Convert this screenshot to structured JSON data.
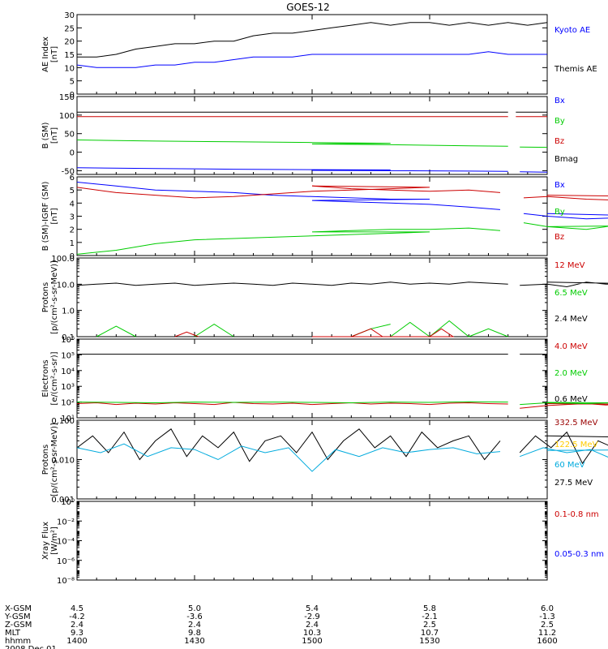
{
  "title": "GOES-12",
  "colors": {
    "black": "#000000",
    "blue": "#0000ff",
    "red": "#cc0000",
    "green": "#00cc00",
    "yellow": "#ffcc00",
    "cyan": "#00aadd",
    "dark_red": "#990000"
  },
  "panels": [
    {
      "id": "ae",
      "ylabel": [
        "AE Index",
        "[nT]"
      ],
      "scale": "linear",
      "ymin": 0,
      "ymax": 30,
      "ticks": [
        0,
        5,
        10,
        15,
        20,
        25,
        30
      ],
      "tick_labels": [
        "0",
        "5",
        "10",
        "15",
        "20",
        "25",
        "30"
      ],
      "legend": [
        {
          "text": "Kyoto AE",
          "color": "#0000ff"
        },
        {
          "text": "Themis AE",
          "color": "#000000"
        }
      ],
      "series": [
        {
          "color": "#000000",
          "x": [
            1400,
            1405,
            1410,
            1415,
            1420,
            1425,
            1430,
            1435,
            1440,
            1445,
            1450,
            1455,
            1500,
            1505,
            1510,
            1515,
            1520,
            1525,
            1530,
            1535,
            1540,
            1545,
            1550,
            1555,
            1600
          ],
          "y": [
            14,
            14,
            15,
            17,
            18,
            19,
            19,
            20,
            20,
            22,
            23,
            23,
            24,
            25,
            26,
            27,
            26,
            27,
            27,
            26,
            27,
            26,
            27,
            26,
            27
          ]
        },
        {
          "color": "#0000ff",
          "x": [
            1400,
            1405,
            1410,
            1415,
            1420,
            1425,
            1430,
            1435,
            1440,
            1445,
            1450,
            1455,
            1500,
            1505,
            1510,
            1515,
            1520,
            1525,
            1530,
            1535,
            1540,
            1545,
            1550,
            1555,
            1600
          ],
          "y": [
            11,
            10,
            10,
            10,
            11,
            11,
            12,
            12,
            13,
            14,
            14,
            14,
            15,
            15,
            15,
            15,
            15,
            15,
            15,
            15,
            15,
            16,
            15,
            15,
            15
          ]
        }
      ]
    },
    {
      "id": "bfield",
      "ylabel": [
        "B (SM)",
        "[nT]"
      ],
      "scale": "linear",
      "ymin": -60,
      "ymax": 150,
      "ticks": [
        -50,
        0,
        50,
        100,
        150
      ],
      "tick_labels": [
        "-50",
        "0",
        "50",
        "100",
        "150"
      ],
      "legend": [
        {
          "text": "Bx",
          "color": "#0000ff"
        },
        {
          "text": "By",
          "color": "#00cc00"
        },
        {
          "text": "Bz",
          "color": "#cc0000"
        },
        {
          "text": "Bmag",
          "color": "#000000"
        }
      ],
      "series": [
        {
          "color": "#000000",
          "x": [
            1400,
            1550,
            null,
            1552,
            1560,
            1600
          ],
          "y": [
            108,
            108,
            null,
            108,
            108,
            108
          ]
        },
        {
          "color": "#cc0000",
          "x": [
            1400,
            1550,
            null,
            1552,
            1560,
            1600
          ],
          "y": [
            96,
            96,
            null,
            96,
            96,
            96
          ]
        },
        {
          "color": "#00cc00",
          "x": [
            1400,
            1420,
            1440,
            1460,
            1480,
            1500,
            1520,
            1540,
            1550,
            null,
            1553,
            1600
          ],
          "y": [
            33,
            30,
            28,
            26,
            24,
            22,
            20,
            17,
            16,
            null,
            14,
            13
          ]
        },
        {
          "color": "#0000ff",
          "x": [
            1400,
            1420,
            1440,
            1460,
            1480,
            1500,
            1520,
            1540,
            1550,
            null,
            1553,
            1600
          ],
          "y": [
            -42,
            -44,
            -46,
            -47,
            -48,
            -49,
            -50,
            -51,
            -52,
            null,
            -53,
            -54
          ]
        }
      ]
    },
    {
      "id": "bigrf",
      "ylabel": [
        "B (SM)-IGRF (SM)",
        "[nT]"
      ],
      "scale": "linear",
      "ymin": 0,
      "ymax": 6,
      "ticks": [
        0,
        1,
        2,
        3,
        4,
        5,
        6
      ],
      "tick_labels": [
        "0",
        "1",
        "2",
        "3",
        "4",
        "5",
        "6"
      ],
      "legend": [
        {
          "text": "Bx",
          "color": "#0000ff"
        },
        {
          "text": "By",
          "color": "#00cc00"
        },
        {
          "text": "Bz",
          "color": "#cc0000"
        }
      ],
      "series": [
        {
          "color": "#0000ff",
          "x": [
            1400,
            1410,
            1420,
            1430,
            1440,
            1450,
            1460,
            1470,
            1480,
            1490,
            1500,
            1510,
            1520,
            1530,
            1540,
            1548,
            null,
            1554,
            1560,
            1570,
            1580,
            1590,
            1600
          ],
          "y": [
            5.6,
            5.3,
            5.0,
            4.9,
            4.8,
            4.6,
            4.5,
            4.4,
            4.3,
            4.3,
            4.2,
            4.1,
            4.0,
            3.9,
            3.7,
            3.5,
            null,
            3.2,
            3.0,
            2.8,
            2.9,
            3.0,
            3.2
          ]
        },
        {
          "color": "#cc0000",
          "x": [
            1400,
            1410,
            1420,
            1430,
            1440,
            1450,
            1460,
            1470,
            1480,
            1490,
            1500,
            1510,
            1520,
            1530,
            1540,
            1548,
            null,
            1554,
            1560,
            1570,
            1580,
            1590,
            1600
          ],
          "y": [
            5.2,
            4.8,
            4.6,
            4.4,
            4.5,
            4.7,
            4.9,
            5.0,
            5.1,
            5.2,
            5.3,
            5.1,
            5.0,
            4.9,
            5.0,
            4.8,
            null,
            4.4,
            4.5,
            4.3,
            4.2,
            4.5,
            4.6
          ]
        },
        {
          "color": "#00cc00",
          "x": [
            1400,
            1410,
            1420,
            1430,
            1440,
            1450,
            1460,
            1470,
            1480,
            1490,
            1500,
            1510,
            1520,
            1530,
            1540,
            1548,
            null,
            1554,
            1560,
            1570,
            1580,
            1590,
            1600
          ],
          "y": [
            0.1,
            0.4,
            0.9,
            1.2,
            1.3,
            1.4,
            1.5,
            1.6,
            1.7,
            1.8,
            1.8,
            1.9,
            2.0,
            2.0,
            2.1,
            1.9,
            null,
            2.5,
            2.2,
            2.0,
            2.4,
            2.3,
            2.2
          ]
        }
      ]
    },
    {
      "id": "protons1",
      "ylabel": [
        "Protons",
        "[p/(cm²-s-sr-MeV)]"
      ],
      "scale": "log",
      "ymin": 0.1,
      "ymax": 100,
      "ticks": [
        0.1,
        1,
        10,
        100
      ],
      "tick_labels": [
        "0.1",
        "1.0",
        "10.0",
        "100.0"
      ],
      "legend": [
        {
          "text": "12 MeV",
          "color": "#cc0000"
        },
        {
          "text": "6.5 MeV",
          "color": "#00cc00"
        },
        {
          "text": "2.4 MeV",
          "color": "#000000"
        }
      ],
      "series": [
        {
          "color": "#000000",
          "x": [
            1400,
            1405,
            1410,
            1415,
            1420,
            1425,
            1430,
            1435,
            1440,
            1445,
            1450,
            1455,
            1500,
            1505,
            1510,
            1515,
            1520,
            1525,
            1530,
            1535,
            1540,
            1545,
            1550,
            null,
            1553,
            1560,
            1565,
            1570,
            1575,
            1580,
            1585,
            1590,
            1600
          ],
          "y": [
            9,
            10,
            11,
            9,
            10,
            11,
            9,
            10,
            11,
            10,
            9,
            11,
            10,
            9,
            11,
            10,
            12,
            10,
            11,
            10,
            12,
            11,
            10,
            null,
            9,
            10,
            8,
            12,
            10,
            11,
            9,
            10,
            12
          ]
        },
        {
          "color": "#00cc00",
          "x": [
            1405,
            1410,
            1415,
            null,
            1430,
            1435,
            1440,
            null,
            1460,
            1465,
            null,
            1480,
            1485,
            1490,
            null,
            1510,
            1515,
            1520,
            null,
            1530,
            1535,
            1540,
            1545,
            1550
          ],
          "y": [
            0.1,
            0.25,
            0.1,
            null,
            0.1,
            0.3,
            0.1,
            null,
            0.1,
            0.1,
            null,
            0.1,
            0.35,
            0.1,
            null,
            0.1,
            0.2,
            0.3,
            null,
            0.1,
            0.4,
            0.1,
            0.2,
            0.1
          ]
        },
        {
          "color": "#cc0000",
          "x": [
            1425,
            1428,
            1431,
            null,
            1490,
            1493,
            1496,
            1500,
            null,
            1510,
            1515,
            1518
          ],
          "y": [
            0.1,
            0.15,
            0.1,
            null,
            0.1,
            0.2,
            0.1,
            0.1,
            null,
            0.1,
            0.2,
            0.1
          ]
        }
      ]
    },
    {
      "id": "electrons",
      "ylabel": [
        "Electrons",
        "[e/(cm²-s-sr)]"
      ],
      "scale": "log",
      "ymin": 10,
      "ymax": 1000000,
      "ticks": [
        10,
        100,
        1000,
        10000,
        100000,
        1000000
      ],
      "tick_labels": [
        "10¹",
        "10²",
        "10³",
        "10⁴",
        "10⁵",
        "10⁶"
      ],
      "legend": [
        {
          "text": "4.0 MeV",
          "color": "#cc0000"
        },
        {
          "text": "2.0 MeV",
          "color": "#00cc00"
        },
        {
          "text": "0.6 MeV",
          "color": "#000000"
        }
      ],
      "series": [
        {
          "color": "#000000",
          "x": [
            1400,
            1550,
            null,
            1553,
            1600
          ],
          "y": [
            110000,
            110000,
            null,
            110000,
            110000
          ]
        },
        {
          "color": "#cc0000",
          "x": [
            1400,
            1405,
            1410,
            1415,
            1420,
            1425,
            1430,
            1435,
            1440,
            1445,
            1450,
            1455,
            1500,
            1505,
            1510,
            1515,
            1520,
            1525,
            1530,
            1535,
            1540,
            1545,
            1550,
            null,
            1553,
            1560,
            1565,
            1570,
            1575,
            1580,
            1585,
            1590,
            1600
          ],
          "y": [
            80,
            90,
            70,
            85,
            75,
            90,
            80,
            70,
            95,
            80,
            75,
            85,
            70,
            80,
            90,
            75,
            85,
            80,
            70,
            85,
            90,
            80,
            75,
            null,
            40,
            60,
            70,
            80,
            65,
            75,
            85,
            70,
            80
          ]
        },
        {
          "color": "#00cc00",
          "x": [
            1400,
            1410,
            1420,
            1430,
            1440,
            1450,
            1500,
            1510,
            1520,
            1530,
            1540,
            1550,
            null,
            1553,
            1560,
            1570,
            1580,
            1590,
            1600
          ],
          "y": [
            100,
            95,
            90,
            100,
            95,
            100,
            95,
            90,
            100,
            95,
            105,
            100,
            null,
            70,
            90,
            80,
            95,
            85,
            95
          ]
        }
      ]
    },
    {
      "id": "protons2",
      "ylabel": [
        "Protons",
        "[p/(cm²-s-sr-MeV)]"
      ],
      "scale": "log",
      "ymin": 0.001,
      "ymax": 0.1,
      "ticks": [
        0.001,
        0.01,
        0.1
      ],
      "tick_labels": [
        "0.001",
        "0.010",
        "0.100"
      ],
      "legend": [
        {
          "text": "332.5 MeV",
          "color": "#990000"
        },
        {
          "text": "122.5 MeV",
          "color": "#ffcc00"
        },
        {
          "text": "60 MeV",
          "color": "#00aadd"
        },
        {
          "text": "27.5 MeV",
          "color": "#000000"
        }
      ],
      "series": [
        {
          "color": "#000000",
          "x": [
            1400,
            1404,
            1408,
            1412,
            1416,
            1420,
            1424,
            1428,
            1432,
            1436,
            1440,
            1444,
            1448,
            1452,
            1456,
            1500,
            1504,
            1508,
            1512,
            1516,
            1520,
            1524,
            1528,
            1532,
            1536,
            1540,
            1544,
            1548,
            null,
            1553,
            1557,
            1561,
            1565,
            1569,
            1573,
            1577,
            1581,
            1585,
            1589,
            1593,
            1597,
            1600
          ],
          "y": [
            0.02,
            0.04,
            0.015,
            0.05,
            0.01,
            0.03,
            0.06,
            0.012,
            0.04,
            0.02,
            0.05,
            0.009,
            0.03,
            0.04,
            0.015,
            0.05,
            0.01,
            0.03,
            0.06,
            0.02,
            0.04,
            0.012,
            0.05,
            0.02,
            0.03,
            0.04,
            0.01,
            0.03,
            null,
            0.015,
            0.04,
            0.02,
            0.05,
            0.008,
            0.03,
            0.02,
            0.04,
            0.01,
            0.03,
            0.02,
            0.035,
            0.04
          ]
        },
        {
          "color": "#00aadd",
          "x": [
            1400,
            1406,
            1412,
            1418,
            1424,
            1430,
            1436,
            1442,
            1448,
            1454,
            1500,
            1506,
            1512,
            1518,
            1524,
            1530,
            1536,
            1542,
            1548,
            null,
            1553,
            1559,
            1565,
            1571,
            1577,
            1583,
            1589,
            1595,
            1600
          ],
          "y": [
            0.02,
            0.015,
            0.025,
            0.012,
            0.02,
            0.018,
            0.01,
            0.022,
            0.015,
            0.02,
            0.005,
            0.018,
            0.012,
            0.02,
            0.015,
            0.018,
            0.02,
            0.014,
            0.016,
            null,
            0.012,
            0.02,
            0.015,
            0.018,
            0.01,
            0.02,
            0.015,
            0.018,
            0.017
          ]
        }
      ]
    },
    {
      "id": "xray",
      "ylabel": [
        "Xray Flux",
        "[W/m²]"
      ],
      "scale": "log",
      "ymin": 1e-08,
      "ymax": 1,
      "ticks": [
        1e-08,
        1e-06,
        0.0001,
        0.01,
        1
      ],
      "tick_labels": [
        "10⁻⁸",
        "10⁻⁶",
        "10⁻⁴",
        "10⁻²",
        "10⁰"
      ],
      "legend": [
        {
          "text": "0.1-0.8 nm",
          "color": "#cc0000"
        },
        {
          "text": "0.05-0.3 nm",
          "color": "#0000ff"
        }
      ],
      "series": []
    }
  ],
  "x_axis": {
    "range": [
      1400,
      1600
    ],
    "tick_hhmm": [
      1400,
      1430,
      1500,
      1530,
      1600
    ],
    "row_labels": [
      "X-GSM",
      "Y-GSM",
      "Z-GSM",
      "MLT",
      "hhmm",
      "2008 Dec 01"
    ],
    "columns": [
      [
        "4.5",
        "-4.2",
        "2.4",
        "9.3",
        "1400"
      ],
      [
        "5.0",
        "-3.6",
        "2.4",
        "9.8",
        "1430"
      ],
      [
        "5.4",
        "-2.9",
        "2.4",
        "10.3",
        "1500"
      ],
      [
        "5.8",
        "-2.1",
        "2.5",
        "10.7",
        "1530"
      ],
      [
        "6.0",
        "-1.3",
        "2.5",
        "11.2",
        "1600"
      ]
    ]
  }
}
